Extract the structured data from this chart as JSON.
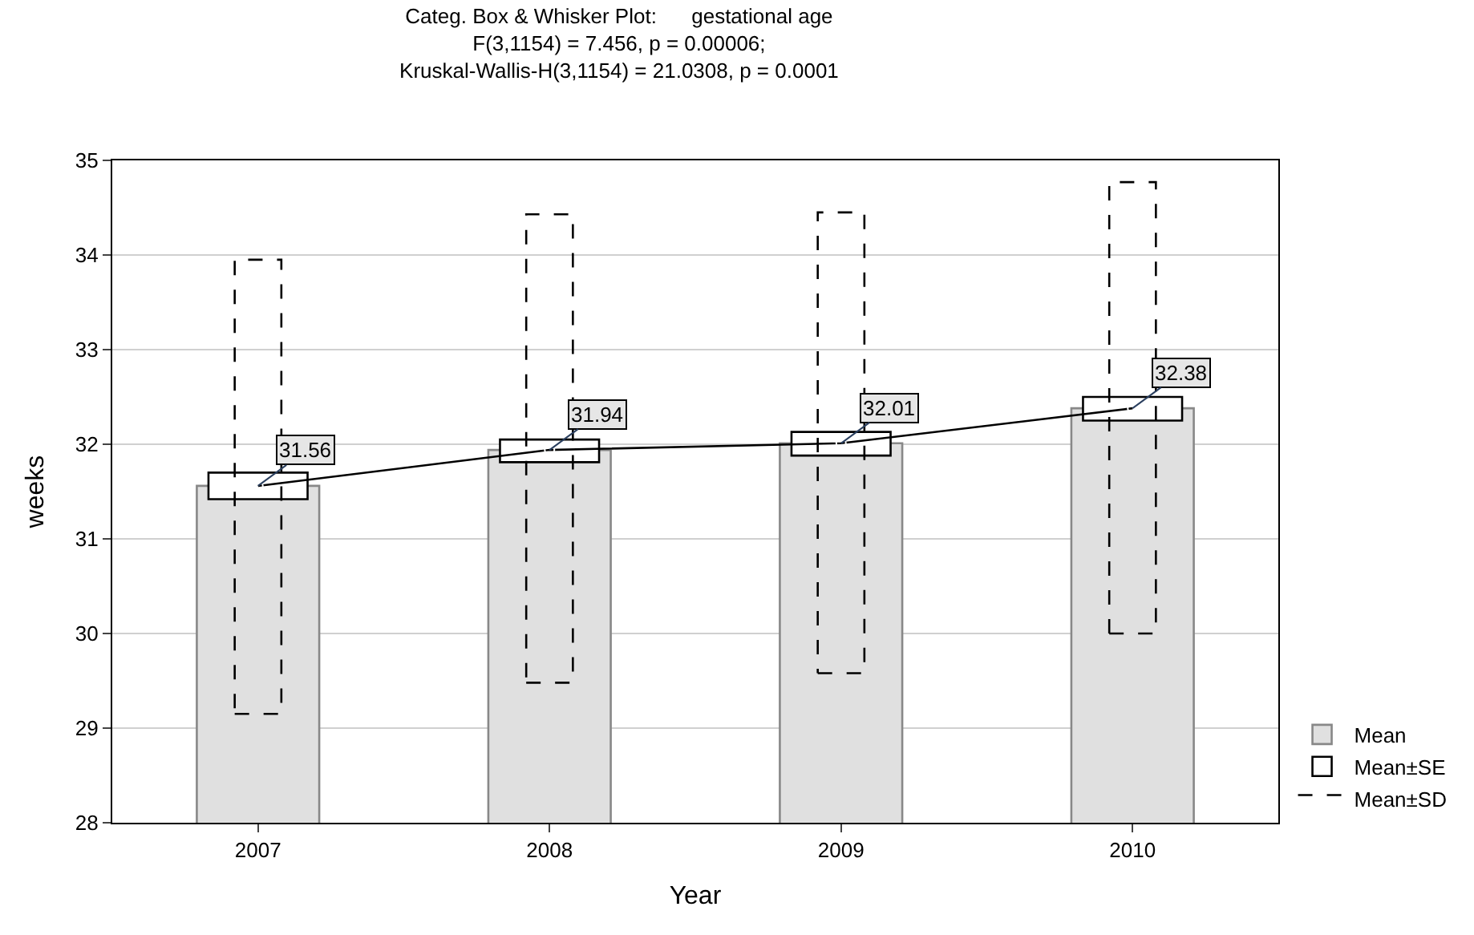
{
  "chart_data": {
    "type": "bar",
    "title": "Categ. Box & Whisker Plot:      gestational age\nF(3,1154) = 7.456, p = 0.00006;\nKruskal-Wallis-H(3,1154) = 21.0308, p = 0.0001",
    "xlabel": "Year",
    "ylabel": "weeks",
    "categories": [
      "2007",
      "2008",
      "2009",
      "2010"
    ],
    "series": [
      {
        "name": "Mean",
        "color": "#e0e0e0",
        "values": [
          31.56,
          31.94,
          32.01,
          32.38
        ]
      },
      {
        "name": "Mean±SE",
        "color": "#ffffff",
        "base": [
          31.42,
          31.81,
          31.88,
          32.25
        ],
        "values": [
          0.28,
          0.24,
          0.25,
          0.25
        ]
      },
      {
        "name": "Mean±SD",
        "color": "#000000",
        "line_style": "dashed",
        "base": [
          29.15,
          29.48,
          29.58,
          30.0
        ],
        "values": [
          4.8,
          4.95,
          4.87,
          4.77
        ]
      },
      {
        "type": "line",
        "color": "#000000",
        "marker": "circle",
        "values": [
          31.56,
          31.94,
          32.01,
          32.38
        ],
        "value_labels": [
          "31.56",
          "31.94",
          "32.01",
          "32.38"
        ]
      }
    ],
    "ylim": [
      28,
      35
    ],
    "yticks": [
      28,
      29,
      30,
      31,
      32,
      33,
      34,
      35
    ],
    "grid": "y",
    "legend": "bottom right"
  }
}
